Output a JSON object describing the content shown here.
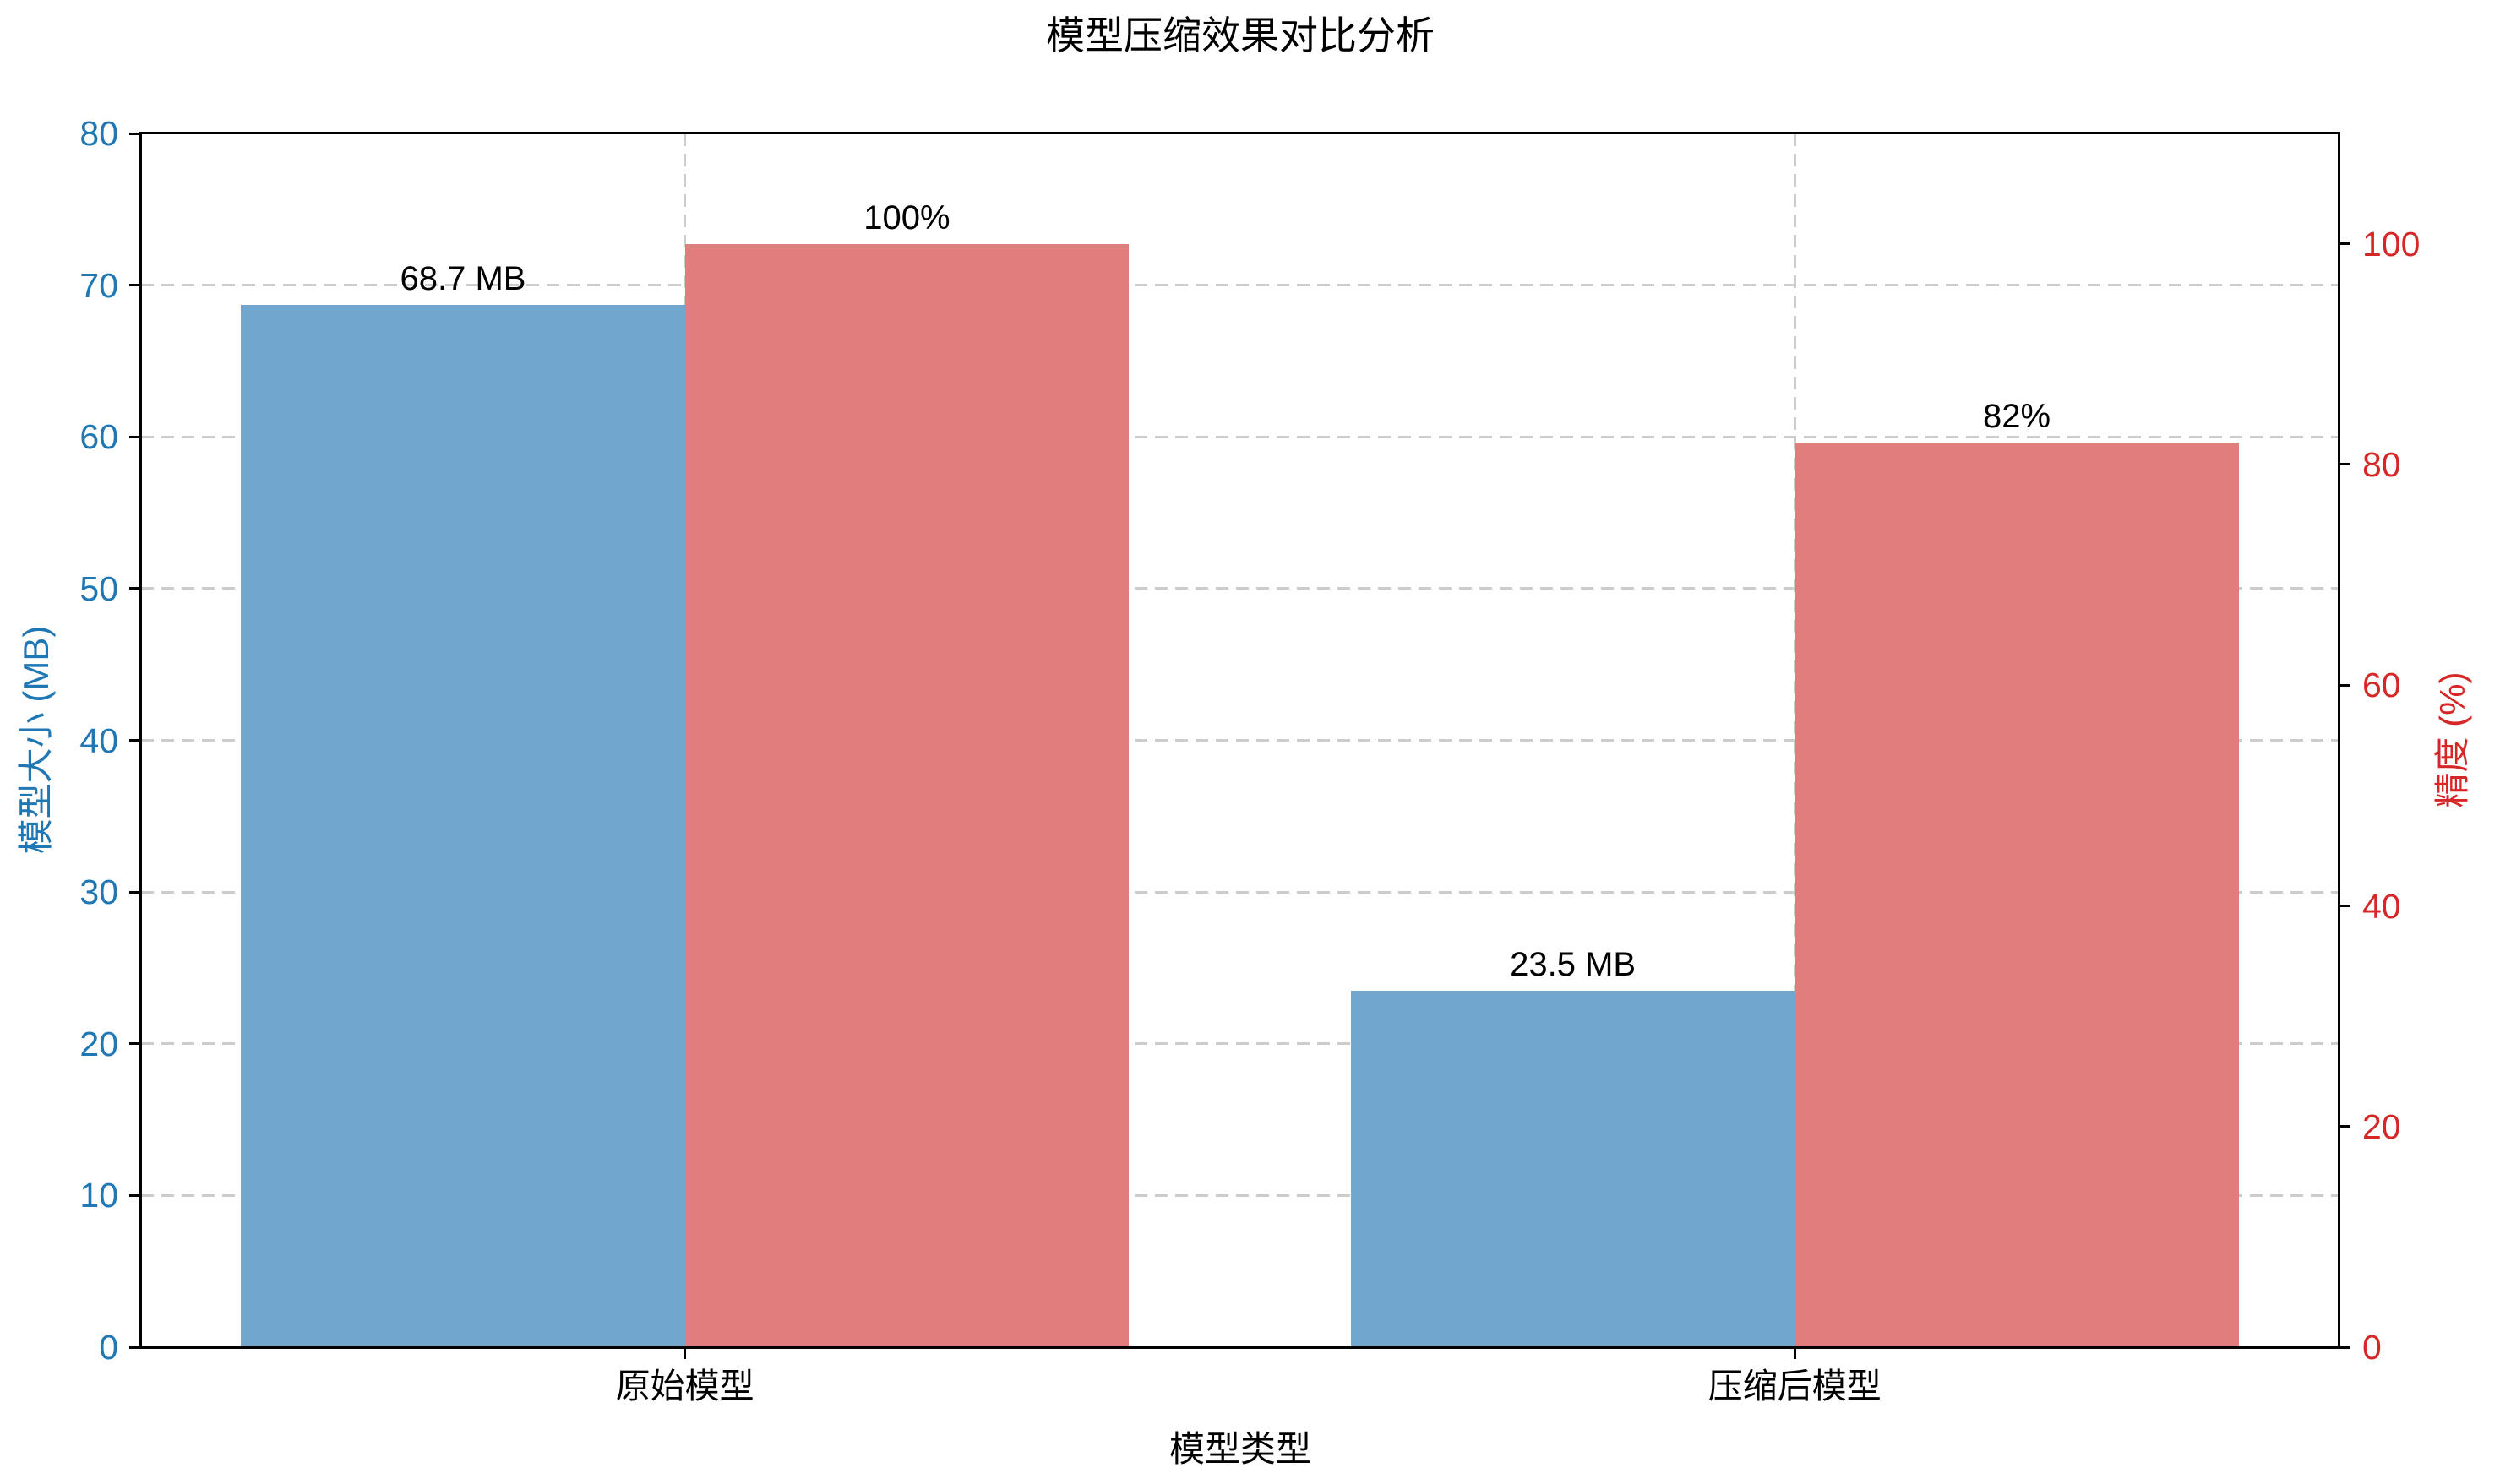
{
  "title": "模型压缩效果对比分析",
  "chart_data": {
    "type": "bar",
    "categories": [
      "原始模型",
      "压缩后模型"
    ],
    "series": [
      {
        "name": "模型大小",
        "axis": "left",
        "values": [
          68.7,
          23.5
        ],
        "labels": [
          "68.7 MB",
          "23.5 MB"
        ],
        "color": "#71A7CE"
      },
      {
        "name": "精度",
        "axis": "right",
        "values": [
          100,
          82
        ],
        "labels": [
          "100%",
          "82%"
        ],
        "color": "#E07E7E"
      }
    ],
    "xlabel": "模型类型",
    "ylabel_left": "模型大小 (MB)",
    "ylabel_right": "精度 (%)",
    "ylim_left": [
      0,
      80
    ],
    "ylim_right": [
      0,
      110
    ],
    "left_ticks": [
      0,
      10,
      20,
      30,
      40,
      50,
      60,
      70,
      80
    ],
    "right_ticks": [
      0,
      20,
      40,
      60,
      80,
      100
    ],
    "grid": "dashed-lightgray",
    "legend": "none",
    "axis_colors": {
      "left_labels": "#1F77B4",
      "right_labels": "#D62728",
      "spines": "#000000",
      "grid": "#cccccc"
    }
  }
}
